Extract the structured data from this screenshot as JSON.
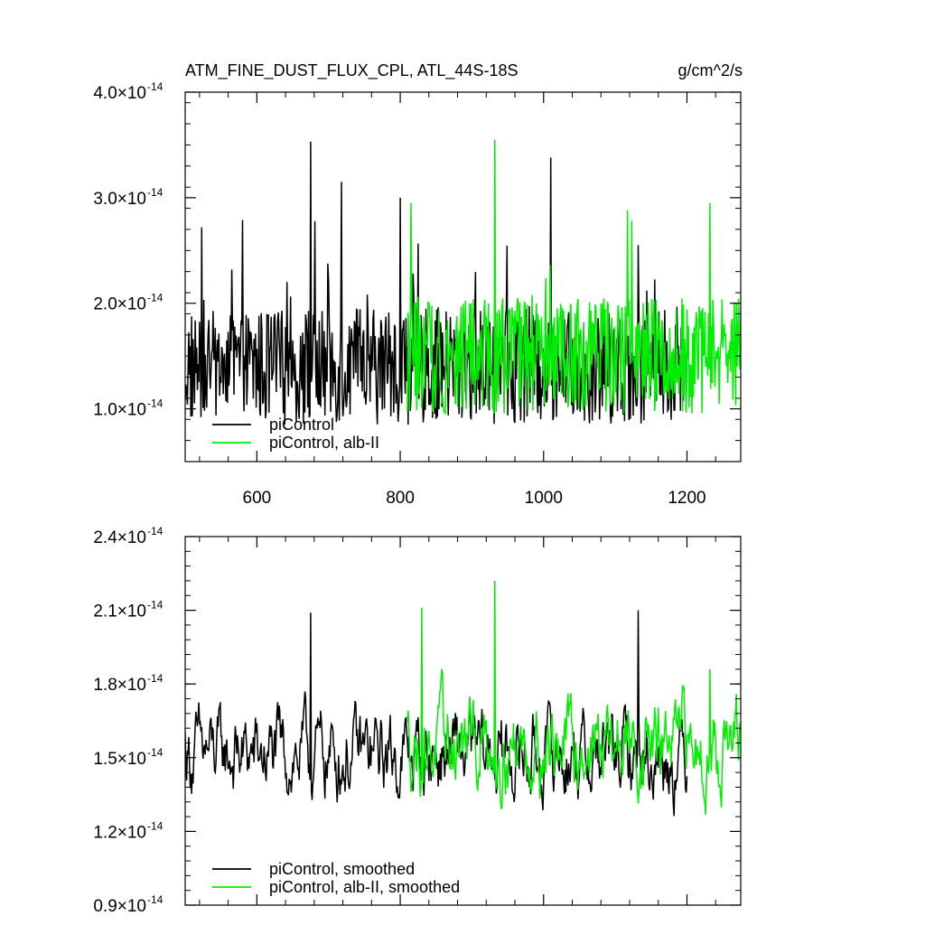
{
  "page": {
    "title_left": "ATM_FINE_DUST_FLUX_CPL, ATL_44S-18S",
    "title_right": "g/cm^2/s"
  },
  "chart_data": [
    {
      "type": "line",
      "panel": "top",
      "xlim": [
        500,
        1275
      ],
      "ylim": [
        0.5,
        4.0
      ],
      "y_exponent": "-14",
      "y_ticks": [
        {
          "value": 1.0,
          "label": "1.0×10",
          "exp": "-14"
        },
        {
          "value": 2.0,
          "label": "2.0×10",
          "exp": "-14"
        },
        {
          "value": 3.0,
          "label": "3.0×10",
          "exp": "-14"
        },
        {
          "value": 4.0,
          "label": "4.0×10",
          "exp": "-14"
        }
      ],
      "x_ticks": [
        {
          "value": 600,
          "label": "600"
        },
        {
          "value": 800,
          "label": "800"
        },
        {
          "value": 1000,
          "label": "1000"
        },
        {
          "value": 1200,
          "label": "1200"
        }
      ],
      "legend_position": "bottom-left",
      "series": [
        {
          "name": "piControl",
          "color": "#000000",
          "x_start": 500,
          "x_end": 1200,
          "approx_mean": 1.4,
          "approx_range": [
            0.55,
            3.55
          ],
          "peaks": [
            {
              "x": 675,
              "y": 3.53
            },
            {
              "x": 1010,
              "y": 3.38
            },
            {
              "x": 718,
              "y": 3.15
            },
            {
              "x": 800,
              "y": 3.0
            },
            {
              "x": 1132,
              "y": 2.55
            }
          ]
        },
        {
          "name": "piControl, alb-II",
          "color": "#00ee00",
          "x_start": 810,
          "x_end": 1275,
          "approx_mean": 1.5,
          "approx_range": [
            0.58,
            3.55
          ],
          "peaks": [
            {
              "x": 932,
              "y": 3.55
            },
            {
              "x": 1232,
              "y": 2.95
            },
            {
              "x": 815,
              "y": 2.95
            }
          ]
        }
      ]
    },
    {
      "type": "line",
      "panel": "bottom",
      "xlim": [
        500,
        1275
      ],
      "ylim": [
        0.9,
        2.4
      ],
      "y_exponent": "-14",
      "y_ticks": [
        {
          "value": 0.9,
          "label": "0.9×10",
          "exp": "-14"
        },
        {
          "value": 1.2,
          "label": "1.2×10",
          "exp": "-14"
        },
        {
          "value": 1.5,
          "label": "1.5×10",
          "exp": "-14"
        },
        {
          "value": 1.8,
          "label": "1.8×10",
          "exp": "-14"
        },
        {
          "value": 2.1,
          "label": "2.1×10",
          "exp": "-14"
        },
        {
          "value": 2.4,
          "label": "2.4×10",
          "exp": "-14"
        }
      ],
      "legend_position": "bottom-left",
      "series": [
        {
          "name": "piControl, smoothed",
          "color": "#000000",
          "x_start": 500,
          "x_end": 1200,
          "approx_range": [
            1.02,
            2.1
          ],
          "peaks": [
            {
              "x": 675,
              "y": 2.09
            },
            {
              "x": 1132,
              "y": 2.1
            }
          ]
        },
        {
          "name": "piControl, alb-II, smoothed",
          "color": "#00ee00",
          "x_start": 810,
          "x_end": 1275,
          "approx_range": [
            0.98,
            2.22
          ],
          "peaks": [
            {
              "x": 932,
              "y": 2.22
            },
            {
              "x": 830,
              "y": 2.11
            },
            {
              "x": 1232,
              "y": 1.86
            }
          ]
        }
      ]
    }
  ]
}
